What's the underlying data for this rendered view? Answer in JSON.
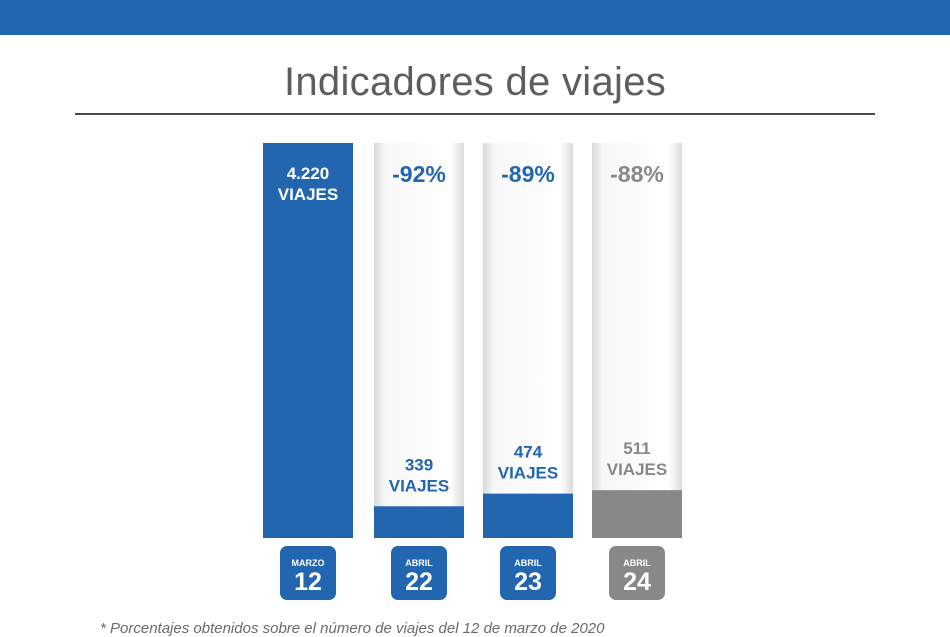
{
  "chart_data": {
    "type": "bar",
    "title": "Indicadores de viajes",
    "categories": [
      "MARZO 12",
      "ABRIL 22",
      "ABRIL 23",
      "ABRIL 24"
    ],
    "values": [
      4220,
      339,
      474,
      511
    ],
    "unit_label": "VIAJES",
    "value_labels": [
      "4.220",
      "339",
      "474",
      "511"
    ],
    "changes": [
      null,
      "-92%",
      "-89%",
      "-88%"
    ],
    "months": [
      "MARZO",
      "ABRIL",
      "ABRIL",
      "ABRIL"
    ],
    "days": [
      "12",
      "22",
      "23",
      "24"
    ],
    "ylim": [
      0,
      4220
    ],
    "xlabel": "",
    "ylabel": "",
    "colors": [
      "#2366b0",
      "#2366b0",
      "#2366b0",
      "#888888"
    ],
    "change_colors": [
      null,
      "#2366b0",
      "#2366b0",
      "#888888"
    ],
    "footnote": "* Porcentajes obtenidos sobre el número de viajes del 12 de marzo de 2020"
  }
}
